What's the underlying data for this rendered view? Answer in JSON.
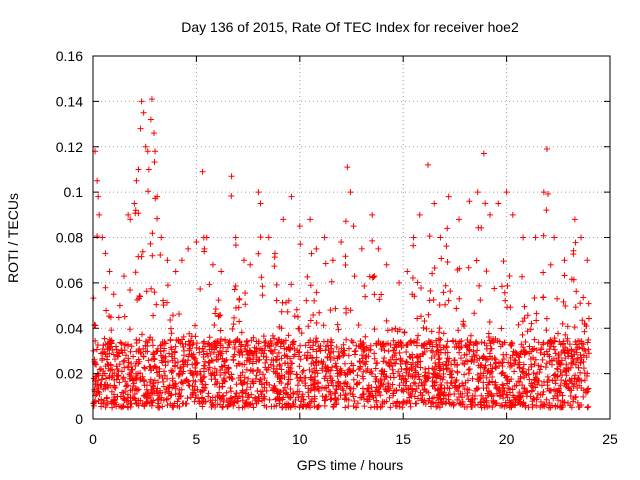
{
  "chart_data": {
    "type": "scatter",
    "title": "Day 136 of 2015, Rate Of TEC Index for receiver hoe2",
    "xlabel": "GPS time / hours",
    "ylabel": "ROTI / TECUs",
    "xlim": [
      0,
      25
    ],
    "ylim": [
      0,
      0.16
    ],
    "xticks": [
      0,
      5,
      10,
      15,
      20,
      25
    ],
    "yticks": [
      0,
      0.02,
      0.04,
      0.06,
      0.08,
      0.1,
      0.12,
      0.14,
      0.16
    ],
    "xtick_labels": [
      "0",
      "5",
      "10",
      "15",
      "20",
      "25"
    ],
    "ytick_labels": [
      "0",
      "0.02",
      "0.04",
      "0.06",
      "0.08",
      "0.1",
      "0.12",
      "0.14",
      "0.16"
    ],
    "grid": true,
    "marker": "+",
    "marker_color": "#ff0000",
    "x_range_of_data": [
      0,
      24
    ],
    "series": [
      {
        "values_description_points": [
          [
            0.1,
            0.118
          ],
          [
            0.2,
            0.105
          ],
          [
            0.25,
            0.098
          ],
          [
            0.3,
            0.09
          ],
          [
            0.45,
            0.08
          ],
          [
            0.6,
            0.073
          ],
          [
            0.8,
            0.065
          ],
          [
            1.0,
            0.055
          ],
          [
            1.3,
            0.05
          ],
          [
            1.5,
            0.063
          ],
          [
            1.7,
            0.09
          ],
          [
            1.8,
            0.088
          ],
          [
            2.0,
            0.095
          ],
          [
            2.1,
            0.105
          ],
          [
            2.2,
            0.11
          ],
          [
            2.3,
            0.128
          ],
          [
            2.35,
            0.14
          ],
          [
            2.45,
            0.135
          ],
          [
            2.55,
            0.12
          ],
          [
            2.65,
            0.118
          ],
          [
            2.7,
            0.11
          ],
          [
            2.8,
            0.132
          ],
          [
            2.85,
            0.141
          ],
          [
            2.95,
            0.126
          ],
          [
            3.0,
            0.118
          ],
          [
            3.1,
            0.098
          ],
          [
            3.3,
            0.08
          ],
          [
            3.6,
            0.07
          ],
          [
            4.0,
            0.065
          ],
          [
            4.3,
            0.07
          ],
          [
            4.6,
            0.075
          ],
          [
            5.0,
            0.078
          ],
          [
            5.3,
            0.109
          ],
          [
            5.5,
            0.08
          ],
          [
            5.8,
            0.068
          ],
          [
            6.2,
            0.065
          ],
          [
            6.7,
            0.107
          ],
          [
            6.9,
            0.08
          ],
          [
            7.3,
            0.07
          ],
          [
            7.6,
            0.068
          ],
          [
            8.0,
            0.1
          ],
          [
            8.1,
            0.095
          ],
          [
            8.5,
            0.08
          ],
          [
            8.8,
            0.073
          ],
          [
            9.2,
            0.088
          ],
          [
            9.6,
            0.098
          ],
          [
            10.0,
            0.085
          ],
          [
            10.5,
            0.088
          ],
          [
            10.8,
            0.075
          ],
          [
            11.2,
            0.08
          ],
          [
            11.6,
            0.07
          ],
          [
            12.0,
            0.078
          ],
          [
            12.3,
            0.111
          ],
          [
            12.45,
            0.1
          ],
          [
            12.6,
            0.085
          ],
          [
            13.0,
            0.075
          ],
          [
            13.5,
            0.09
          ],
          [
            13.8,
            0.075
          ],
          [
            14.2,
            0.068
          ],
          [
            14.8,
            0.06
          ],
          [
            15.2,
            0.065
          ],
          [
            15.5,
            0.08
          ],
          [
            15.8,
            0.09
          ],
          [
            16.2,
            0.112
          ],
          [
            16.5,
            0.095
          ],
          [
            16.8,
            0.08
          ],
          [
            17.2,
            0.098
          ],
          [
            17.7,
            0.088
          ],
          [
            18.2,
            0.096
          ],
          [
            18.6,
            0.1
          ],
          [
            18.9,
            0.117
          ],
          [
            19.2,
            0.09
          ],
          [
            19.6,
            0.095
          ],
          [
            20.0,
            0.1
          ],
          [
            20.3,
            0.09
          ],
          [
            20.8,
            0.08
          ],
          [
            21.4,
            0.08
          ],
          [
            21.8,
            0.1
          ],
          [
            21.95,
            0.119
          ],
          [
            22.3,
            0.08
          ],
          [
            22.8,
            0.07
          ],
          [
            23.3,
            0.088
          ],
          [
            23.6,
            0.08
          ],
          [
            23.9,
            0.07
          ]
        ],
        "baseline_range": [
          0.005,
          0.035
        ],
        "peak_description": "Dense scatter of ROTI values mostly between 0.005 and 0.04 TECUs across 0–24 h, with spikes up to ~0.142 near 2.3–3 h and isolated peaks near 0.11–0.12 at ~12.3 h, 16.2 h, 18.9 h and 22 h."
      }
    ]
  }
}
